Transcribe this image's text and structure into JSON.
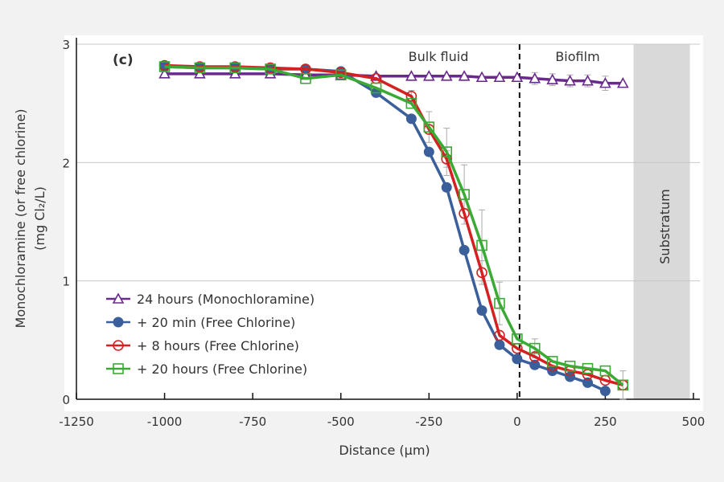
{
  "chart_data": {
    "type": "line",
    "panel_label": "(c)",
    "title": "",
    "xlabel": "Distance (μm)",
    "ylabel_line1": "Monochloramine (or free chlorine)",
    "ylabel_line2": "(mg Cl₂/L)",
    "xlim": [
      -1250,
      500
    ],
    "ylim": [
      0,
      3
    ],
    "xticks": [
      -1250,
      -1000,
      -750,
      -500,
      -250,
      0,
      250,
      500
    ],
    "xtick_labels": [
      "-1250",
      "-1000",
      "-750",
      "-500",
      "-250",
      "0",
      "250",
      "500"
    ],
    "yticks": [
      0,
      1,
      2,
      3
    ],
    "ytick_labels": [
      "0",
      "1",
      "2",
      "3"
    ],
    "grid": "horizontal",
    "legend_position": "lower-left",
    "region_labels": {
      "bulk": "Bulk fluid",
      "biofilm": "Biofilm",
      "substratum": "Substratum"
    },
    "interface_x": 0,
    "substratum_range": [
      330,
      490
    ],
    "series": [
      {
        "name": "24 hours (Monochloramine)",
        "color": "#6a2a8c",
        "marker": "triangle-open",
        "x": [
          -1000,
          -900,
          -800,
          -700,
          -600,
          -500,
          -400,
          -300,
          -250,
          -200,
          -150,
          -100,
          -50,
          0,
          50,
          100,
          150,
          200,
          250,
          300
        ],
        "y": [
          2.75,
          2.75,
          2.75,
          2.75,
          2.74,
          2.74,
          2.73,
          2.73,
          2.73,
          2.73,
          2.73,
          2.72,
          2.72,
          2.72,
          2.71,
          2.7,
          2.69,
          2.69,
          2.67,
          2.67
        ],
        "err": [
          0,
          0,
          0,
          0,
          0,
          0,
          0,
          0,
          0,
          0,
          0,
          0,
          0,
          0,
          0.05,
          0.05,
          0.05,
          0.05,
          0.06,
          0
        ]
      },
      {
        "name": "+ 20 min (Free Chlorine)",
        "color": "#3a5f9a",
        "marker": "circle-filled",
        "x": [
          -1000,
          -900,
          -800,
          -700,
          -600,
          -500,
          -400,
          -300,
          -250,
          -200,
          -150,
          -100,
          -50,
          0,
          50,
          100,
          150,
          200,
          250
        ],
        "y": [
          2.81,
          2.8,
          2.8,
          2.79,
          2.79,
          2.77,
          2.59,
          2.37,
          2.09,
          1.79,
          1.26,
          0.75,
          0.46,
          0.34,
          0.29,
          0.24,
          0.19,
          0.14,
          0.07
        ],
        "err": [
          0,
          0,
          0,
          0,
          0,
          0,
          0,
          0,
          0,
          0,
          0,
          0,
          0,
          0,
          0,
          0,
          0,
          0,
          0
        ]
      },
      {
        "name": "+ 8 hours (Free Chlorine)",
        "color": "#d42020",
        "marker": "circle-open",
        "x": [
          -1000,
          -900,
          -800,
          -700,
          -600,
          -500,
          -400,
          -300,
          -250,
          -200,
          -150,
          -100,
          -50,
          0,
          50,
          100,
          150,
          200,
          250,
          300
        ],
        "y": [
          2.82,
          2.81,
          2.81,
          2.8,
          2.79,
          2.76,
          2.71,
          2.56,
          2.28,
          2.03,
          1.57,
          1.07,
          0.54,
          0.43,
          0.36,
          0.28,
          0.24,
          0.21,
          0.16,
          0.12
        ],
        "err": [
          0,
          0,
          0,
          0,
          0,
          0,
          0,
          0.05,
          0,
          0.07,
          0,
          0.1,
          0,
          0,
          0,
          0,
          0,
          0,
          0,
          0.12
        ]
      },
      {
        "name": "+ 20 hours (Free Chlorine)",
        "color": "#3aaa35",
        "marker": "square-open",
        "x": [
          -1000,
          -900,
          -800,
          -700,
          -600,
          -500,
          -400,
          -300,
          -250,
          -200,
          -150,
          -100,
          -50,
          0,
          50,
          100,
          150,
          200,
          250,
          300
        ],
        "y": [
          2.81,
          2.8,
          2.8,
          2.79,
          2.71,
          2.74,
          2.63,
          2.5,
          2.3,
          2.09,
          1.73,
          1.3,
          0.81,
          0.51,
          0.43,
          0.32,
          0.28,
          0.26,
          0.24,
          0.12
        ],
        "err": [
          0,
          0,
          0,
          0,
          0,
          0,
          0,
          0,
          0.13,
          0.2,
          0.25,
          0.3,
          0.18,
          0,
          0.08,
          0,
          0,
          0,
          0,
          0
        ]
      }
    ]
  }
}
